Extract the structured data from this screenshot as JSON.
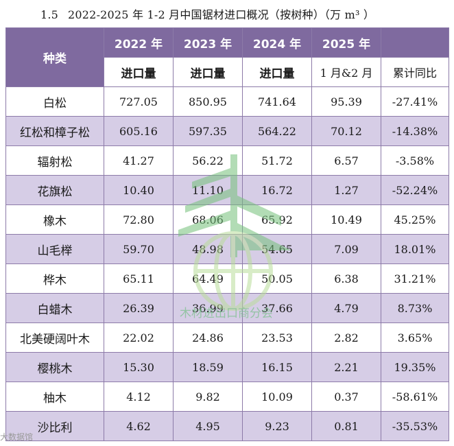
{
  "title": {
    "number": "1.5",
    "text": "2022-2025 年 1-2 月中国锯材进口概况（按树种）（万 m³ ）"
  },
  "table": {
    "kind_header": "种类",
    "years": [
      "2022 年",
      "2023 年",
      "2024 年",
      "2025 年"
    ],
    "sub_headers": [
      "进口量",
      "进口量",
      "进口量",
      "1 月&2 月",
      "累计同比"
    ],
    "rows": [
      {
        "kind": "白松",
        "v2022": "727.05",
        "v2023": "850.95",
        "v2024": "741.64",
        "v2025": "95.39",
        "yoy": "-27.41%"
      },
      {
        "kind": "红松和樟子松",
        "v2022": "605.16",
        "v2023": "597.35",
        "v2024": "564.22",
        "v2025": "70.12",
        "yoy": "-14.38%"
      },
      {
        "kind": "辐射松",
        "v2022": "41.27",
        "v2023": "56.22",
        "v2024": "51.72",
        "v2025": "6.57",
        "yoy": "-3.58%"
      },
      {
        "kind": "花旗松",
        "v2022": "10.40",
        "v2023": "11.10",
        "v2024": "16.72",
        "v2025": "1.27",
        "yoy": "-52.24%"
      },
      {
        "kind": "橡木",
        "v2022": "72.80",
        "v2023": "68.06",
        "v2024": "65.92",
        "v2025": "10.49",
        "yoy": "45.25%"
      },
      {
        "kind": "山毛榉",
        "v2022": "59.70",
        "v2023": "48.98",
        "v2024": "54.65",
        "v2025": "7.09",
        "yoy": "18.01%"
      },
      {
        "kind": "桦木",
        "v2022": "65.11",
        "v2023": "64.49",
        "v2024": "50.05",
        "v2025": "6.38",
        "yoy": "31.21%"
      },
      {
        "kind": "白蜡木",
        "v2022": "26.39",
        "v2023": "36.99",
        "v2024": "37.66",
        "v2025": "4.79",
        "yoy": "8.73%"
      },
      {
        "kind": "北美硬阔叶木",
        "v2022": "22.02",
        "v2023": "24.86",
        "v2024": "23.53",
        "v2025": "2.82",
        "yoy": "3.65%"
      },
      {
        "kind": "樱桃木",
        "v2022": "15.30",
        "v2023": "18.59",
        "v2024": "16.15",
        "v2025": "2.21",
        "yoy": "19.35%"
      },
      {
        "kind": "柚木",
        "v2022": "4.12",
        "v2023": "9.82",
        "v2024": "10.09",
        "v2025": "0.37",
        "yoy": "-58.61%"
      },
      {
        "kind": "沙比利",
        "v2022": "4.62",
        "v2023": "4.95",
        "v2024": "9.23",
        "v2025": "0.81",
        "yoy": "-35.53%"
      }
    ]
  },
  "watermark": {
    "text": "木材进出口商分会",
    "corner_text": "大数据馆",
    "color": "#7ec08f"
  },
  "colors": {
    "header_bg": "#7f6a9f",
    "stripe_bg": "#d6cde6",
    "border": "#8c7aa8"
  }
}
